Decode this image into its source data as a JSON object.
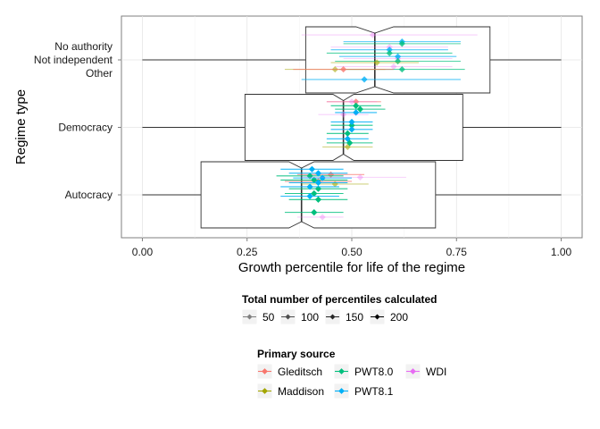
{
  "chart_data": {
    "type": "boxplot",
    "xlabel": "Growth percentile for life of the regime",
    "ylabel": "Regime type",
    "xlim": [
      -0.05,
      1.05
    ],
    "x_ticks": [
      {
        "value": 0.0,
        "label": "0.00"
      },
      {
        "value": 0.25,
        "label": "0.25"
      },
      {
        "value": 0.5,
        "label": "0.50"
      },
      {
        "value": 0.75,
        "label": "0.75"
      },
      {
        "value": 1.0,
        "label": "1.00"
      }
    ],
    "categories": [
      {
        "label": "Autocracy",
        "level": 0
      },
      {
        "label": "Democracy",
        "level": 1
      },
      {
        "label": "Other",
        "level": 1.8
      },
      {
        "label": "Not independent",
        "level": 2.0
      },
      {
        "label": "No authority",
        "level": 2.2
      }
    ],
    "grid": true,
    "colors": {
      "Gleditsch": "#F8766D",
      "Maddison": "#A3A500",
      "PWT8.0": "#00BF7D",
      "PWT8.1": "#00B0F6",
      "WDI": "#E76BF3"
    },
    "boxes": [
      {
        "category": "Autocracy",
        "level": 0,
        "min": 0.0,
        "q1": 0.14,
        "median": 0.38,
        "q3": 0.7,
        "max": 1.0,
        "notch_low": 0.35,
        "notch_high": 0.41
      },
      {
        "category": "Democracy",
        "level": 1,
        "min": 0.0,
        "q1": 0.245,
        "median": 0.48,
        "q3": 0.765,
        "max": 1.0,
        "notch_low": 0.455,
        "notch_high": 0.505
      },
      {
        "category": "Not independent",
        "level": 2,
        "min": 0.0,
        "q1": 0.39,
        "median": 0.555,
        "q3": 0.83,
        "max": 1.0,
        "notch_low": 0.51,
        "notch_high": 0.6
      }
    ],
    "estimates": [
      {
        "source": "Gleditsch",
        "level": 0.3,
        "value": 0.45,
        "low": 0.37,
        "high": 0.53,
        "n": 150
      },
      {
        "source": "Gleditsch",
        "level": 0.2,
        "value": 0.42,
        "low": 0.34,
        "high": 0.5,
        "n": 150
      },
      {
        "source": "Maddison",
        "level": 0.16,
        "value": 0.46,
        "low": 0.38,
        "high": 0.54,
        "n": 100
      },
      {
        "source": "PWT8.0",
        "level": 0.28,
        "value": 0.4,
        "low": 0.32,
        "high": 0.48,
        "n": 200
      },
      {
        "source": "PWT8.0",
        "level": 0.22,
        "value": 0.41,
        "low": 0.33,
        "high": 0.49,
        "n": 200
      },
      {
        "source": "PWT8.0",
        "level": 0.09,
        "value": 0.42,
        "low": 0.35,
        "high": 0.49,
        "n": 200
      },
      {
        "source": "PWT8.0",
        "level": 0.02,
        "value": 0.41,
        "low": 0.34,
        "high": 0.48,
        "n": 200
      },
      {
        "source": "PWT8.0",
        "level": -0.07,
        "value": 0.42,
        "low": 0.35,
        "high": 0.49,
        "n": 200
      },
      {
        "source": "PWT8.0",
        "level": -0.26,
        "value": 0.41,
        "low": 0.34,
        "high": 0.48,
        "n": 200
      },
      {
        "source": "PWT8.1",
        "level": 0.38,
        "value": 0.405,
        "low": 0.33,
        "high": 0.48,
        "n": 200
      },
      {
        "source": "PWT8.1",
        "level": 0.32,
        "value": 0.42,
        "low": 0.35,
        "high": 0.49,
        "n": 200
      },
      {
        "source": "PWT8.1",
        "level": 0.25,
        "value": 0.43,
        "low": 0.36,
        "high": 0.5,
        "n": 200
      },
      {
        "source": "PWT8.1",
        "level": 0.18,
        "value": 0.42,
        "low": 0.35,
        "high": 0.49,
        "n": 200
      },
      {
        "source": "PWT8.1",
        "level": 0.12,
        "value": 0.4,
        "low": 0.33,
        "high": 0.47,
        "n": 200
      },
      {
        "source": "PWT8.1",
        "level": -0.02,
        "value": 0.4,
        "low": 0.33,
        "high": 0.47,
        "n": 200
      },
      {
        "source": "WDI",
        "level": 0.26,
        "value": 0.52,
        "low": 0.38,
        "high": 0.63,
        "n": 50
      },
      {
        "source": "WDI",
        "level": -0.33,
        "value": 0.43,
        "low": 0.37,
        "high": 0.48,
        "n": 50
      },
      {
        "source": "Gleditsch",
        "level": 1.38,
        "value": 0.51,
        "low": 0.44,
        "high": 0.57,
        "n": 150
      },
      {
        "source": "Maddison",
        "level": 0.71,
        "value": 0.49,
        "low": 0.43,
        "high": 0.55,
        "n": 100
      },
      {
        "source": "PWT8.0",
        "level": 1.32,
        "value": 0.51,
        "low": 0.45,
        "high": 0.57,
        "n": 200
      },
      {
        "source": "PWT8.0",
        "level": 1.27,
        "value": 0.52,
        "low": 0.46,
        "high": 0.58,
        "n": 200
      },
      {
        "source": "PWT8.0",
        "level": 1.03,
        "value": 0.5,
        "low": 0.45,
        "high": 0.55,
        "n": 200
      },
      {
        "source": "PWT8.0",
        "level": 0.91,
        "value": 0.49,
        "low": 0.44,
        "high": 0.54,
        "n": 200
      },
      {
        "source": "PWT8.0",
        "level": 0.77,
        "value": 0.495,
        "low": 0.44,
        "high": 0.55,
        "n": 200
      },
      {
        "source": "PWT8.1",
        "level": 1.22,
        "value": 0.51,
        "low": 0.46,
        "high": 0.56,
        "n": 200
      },
      {
        "source": "PWT8.1",
        "level": 1.08,
        "value": 0.5,
        "low": 0.45,
        "high": 0.55,
        "n": 200
      },
      {
        "source": "PWT8.1",
        "level": 0.97,
        "value": 0.5,
        "low": 0.45,
        "high": 0.55,
        "n": 200
      },
      {
        "source": "PWT8.1",
        "level": 0.83,
        "value": 0.49,
        "low": 0.44,
        "high": 0.54,
        "n": 200
      },
      {
        "source": "WDI",
        "level": 1.38,
        "value": 0.5,
        "low": 0.44,
        "high": 0.56,
        "n": 50
      },
      {
        "source": "WDI",
        "level": 1.19,
        "value": 0.48,
        "low": 0.42,
        "high": 0.54,
        "n": 50
      },
      {
        "source": "WDI",
        "level": 2.37,
        "value": 0.55,
        "low": 0.38,
        "high": 0.8,
        "n": 50
      },
      {
        "source": "WDI",
        "level": 2.19,
        "value": 0.59,
        "low": 0.45,
        "high": 0.73,
        "n": 50
      },
      {
        "source": "WDI",
        "level": 2.02,
        "value": 0.61,
        "low": 0.48,
        "high": 0.74,
        "n": 50
      },
      {
        "source": "WDI",
        "level": 1.9,
        "value": 0.6,
        "low": 0.46,
        "high": 0.74,
        "n": 50
      },
      {
        "source": "PWT8.1",
        "level": 2.27,
        "value": 0.62,
        "low": 0.48,
        "high": 0.76,
        "n": 150
      },
      {
        "source": "PWT8.1",
        "level": 2.15,
        "value": 0.59,
        "low": 0.45,
        "high": 0.73,
        "n": 150
      },
      {
        "source": "PWT8.1",
        "level": 2.05,
        "value": 0.61,
        "low": 0.47,
        "high": 0.75,
        "n": 150
      },
      {
        "source": "PWT8.1",
        "level": 1.71,
        "value": 0.53,
        "low": 0.38,
        "high": 0.76,
        "n": 150
      },
      {
        "source": "PWT8.0",
        "level": 2.24,
        "value": 0.62,
        "low": 0.48,
        "high": 0.76,
        "n": 150
      },
      {
        "source": "PWT8.0",
        "level": 2.1,
        "value": 0.59,
        "low": 0.44,
        "high": 0.74,
        "n": 150
      },
      {
        "source": "PWT8.0",
        "level": 1.98,
        "value": 0.61,
        "low": 0.46,
        "high": 0.76,
        "n": 150
      },
      {
        "source": "PWT8.0",
        "level": 1.86,
        "value": 0.62,
        "low": 0.47,
        "high": 0.77,
        "n": 150
      },
      {
        "source": "Maddison",
        "level": 1.96,
        "value": 0.56,
        "low": 0.45,
        "high": 0.66,
        "n": 100
      },
      {
        "source": "Maddison",
        "level": 1.86,
        "value": 0.46,
        "low": 0.34,
        "high": 0.58,
        "n": 100
      },
      {
        "source": "Gleditsch",
        "level": 1.86,
        "value": 0.48,
        "low": 0.36,
        "high": 0.6,
        "n": 150
      }
    ],
    "legends": [
      {
        "title": "Total number of percentiles calculated",
        "items": [
          {
            "label": "50",
            "value": 50,
            "shade": "#7f7f7f"
          },
          {
            "label": "100",
            "value": 100,
            "shade": "#4d4d4d"
          },
          {
            "label": "150",
            "value": 150,
            "shade": "#262626"
          },
          {
            "label": "200",
            "value": 200,
            "shade": "#000000"
          }
        ]
      },
      {
        "title": "Primary source",
        "items": [
          {
            "label": "Gleditsch",
            "key": "Gleditsch"
          },
          {
            "label": "PWT8.0",
            "key": "PWT8.0"
          },
          {
            "label": "WDI",
            "key": "WDI"
          },
          {
            "label": "Maddison",
            "key": "Maddison"
          },
          {
            "label": "PWT8.1",
            "key": "PWT8.1"
          }
        ]
      }
    ]
  }
}
